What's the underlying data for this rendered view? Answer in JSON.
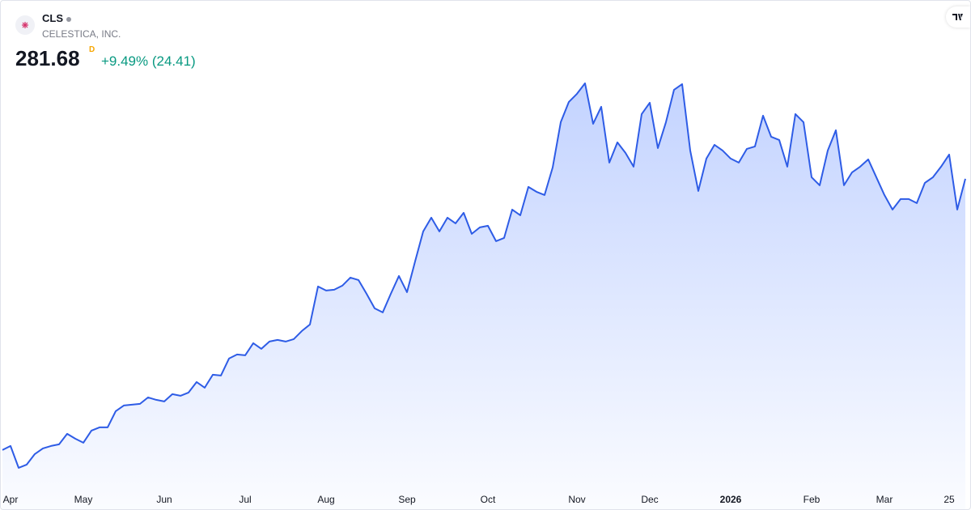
{
  "header": {
    "symbol": "CLS",
    "name": "CELESTICA, INC.",
    "price": "281.68",
    "interval": "D",
    "change": "+9.49% (24.41)"
  },
  "chart_data": {
    "type": "area",
    "color": "#2e5ce6",
    "categories": [
      null,
      "Apr",
      null,
      null,
      null,
      null,
      null,
      null,
      null,
      null,
      "May",
      null,
      null,
      null,
      null,
      null,
      null,
      null,
      null,
      null,
      "Jun",
      null,
      null,
      null,
      null,
      null,
      null,
      null,
      null,
      null,
      "Jul",
      null,
      null,
      null,
      null,
      null,
      null,
      null,
      null,
      null,
      "Aug",
      null,
      null,
      null,
      null,
      null,
      null,
      null,
      null,
      null,
      "Sep",
      null,
      null,
      null,
      null,
      null,
      null,
      null,
      null,
      null,
      "Oct",
      null,
      null,
      null,
      null,
      null,
      null,
      null,
      null,
      null,
      null,
      "Nov",
      null,
      null,
      null,
      null,
      null,
      null,
      null,
      null,
      "Dec",
      null,
      null,
      null,
      null,
      null,
      null,
      null,
      null,
      null,
      "2026",
      null,
      null,
      null,
      null,
      null,
      null,
      null,
      null,
      null,
      "Feb",
      null,
      null,
      null,
      null,
      null,
      null,
      null,
      null,
      "Mar",
      null,
      null,
      null,
      null,
      null,
      null,
      null,
      "25",
      null,
      null
    ],
    "values": [
      77.33,
      80.38,
      63.91,
      66.35,
      74.28,
      78.55,
      80.38,
      81.6,
      89.53,
      85.87,
      82.82,
      91.97,
      94.41,
      94.41,
      106.61,
      110.88,
      111.49,
      112.1,
      116.98,
      115.15,
      113.93,
      119.42,
      118.2,
      120.64,
      128.57,
      124.3,
      134.06,
      133.45,
      146.26,
      149.31,
      148.7,
      157.85,
      153.58,
      159.07,
      160.29,
      159.07,
      160.9,
      167.0,
      171.88,
      200.55,
      197.5,
      198.11,
      201.16,
      207.26,
      205.43,
      195.06,
      184.08,
      181.03,
      195.06,
      208.48,
      196.28,
      219.46,
      242.03,
      252.4,
      242.03,
      252.4,
      248.13,
      256.06,
      240.2,
      245.08,
      246.3,
      234.71,
      237.15,
      258.5,
      254.23,
      275.58,
      271.92,
      269.48,
      290.22,
      324.38,
      339.63,
      345.73,
      353.66,
      323.16,
      335.97,
      293.88,
      309.13,
      301.2,
      290.83,
      330.48,
      339.02,
      304.86,
      324.38,
      348.78,
      353.05,
      303.03,
      272.53,
      296.93,
      307.3,
      303.03,
      296.93,
      293.88,
      304.25,
      306.08,
      329.26,
      313.4,
      310.96,
      290.83,
      330.48,
      324.38,
      282.9,
      276.8,
      303.03,
      318.28,
      276.8,
      286.56,
      290.83,
      296.32,
      282.9,
      269.48,
      258.5,
      266.43,
      266.43,
      263.38,
      278.63,
      282.9,
      290.83,
      299.98,
      258.5,
      281.68
    ],
    "ylim": [
      48,
      360
    ],
    "bold_labels": [
      "2026"
    ]
  }
}
